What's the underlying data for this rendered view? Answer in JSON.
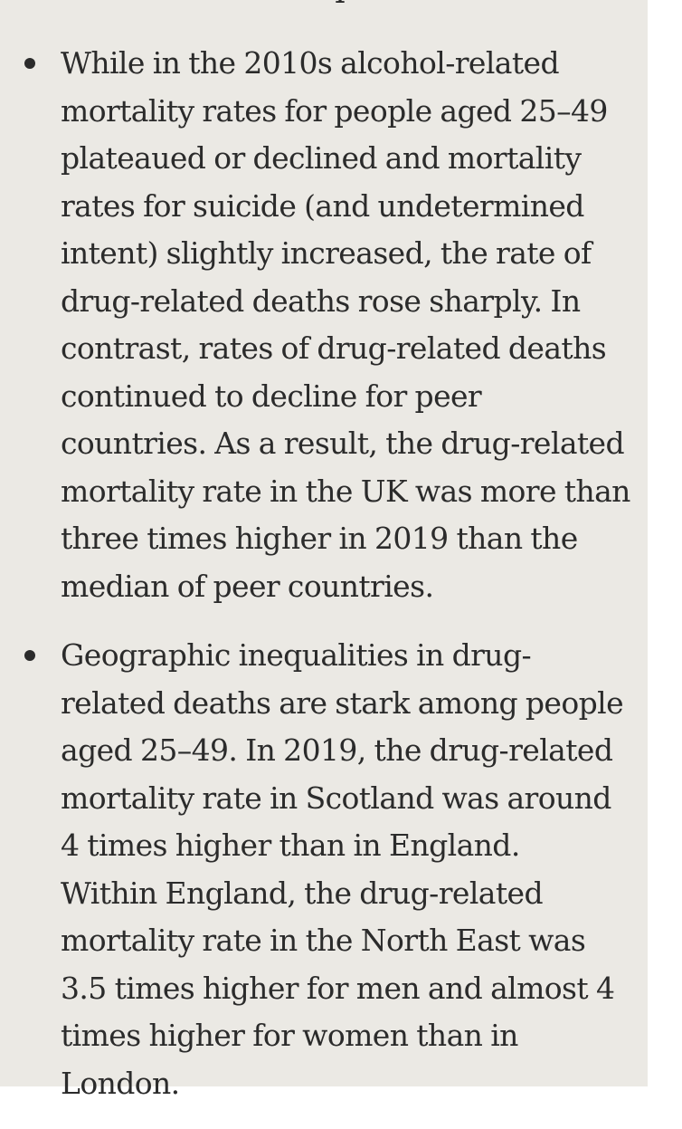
{
  "top_glyph": "ı",
  "bullets": [
    {
      "lines": [
        "While in the 2010s alcohol-related",
        "mortality rates for people aged 25–49",
        "plateaued or declined and mortality",
        "rates for suicide (and undetermined",
        "intent) slightly increased, the rate of",
        "drug-related deaths rose sharply. In",
        "contrast, rates of drug-related deaths",
        "continued to decline for peer",
        "countries. As a result, the drug-related",
        "mortality rate in the UK was more than",
        "three times higher in 2019 than the",
        "median of peer countries."
      ]
    },
    {
      "lines": [
        "Geographic inequalities in drug-",
        "related deaths are stark among people",
        "aged 25–49. In 2019, the drug-related",
        "mortality rate in Scotland was around",
        "4 times higher than in England.",
        "Within England, the drug-related",
        "mortality rate in the North East was",
        "3.5 times higher for men and almost 4",
        "times higher for women than in",
        "London."
      ]
    }
  ]
}
